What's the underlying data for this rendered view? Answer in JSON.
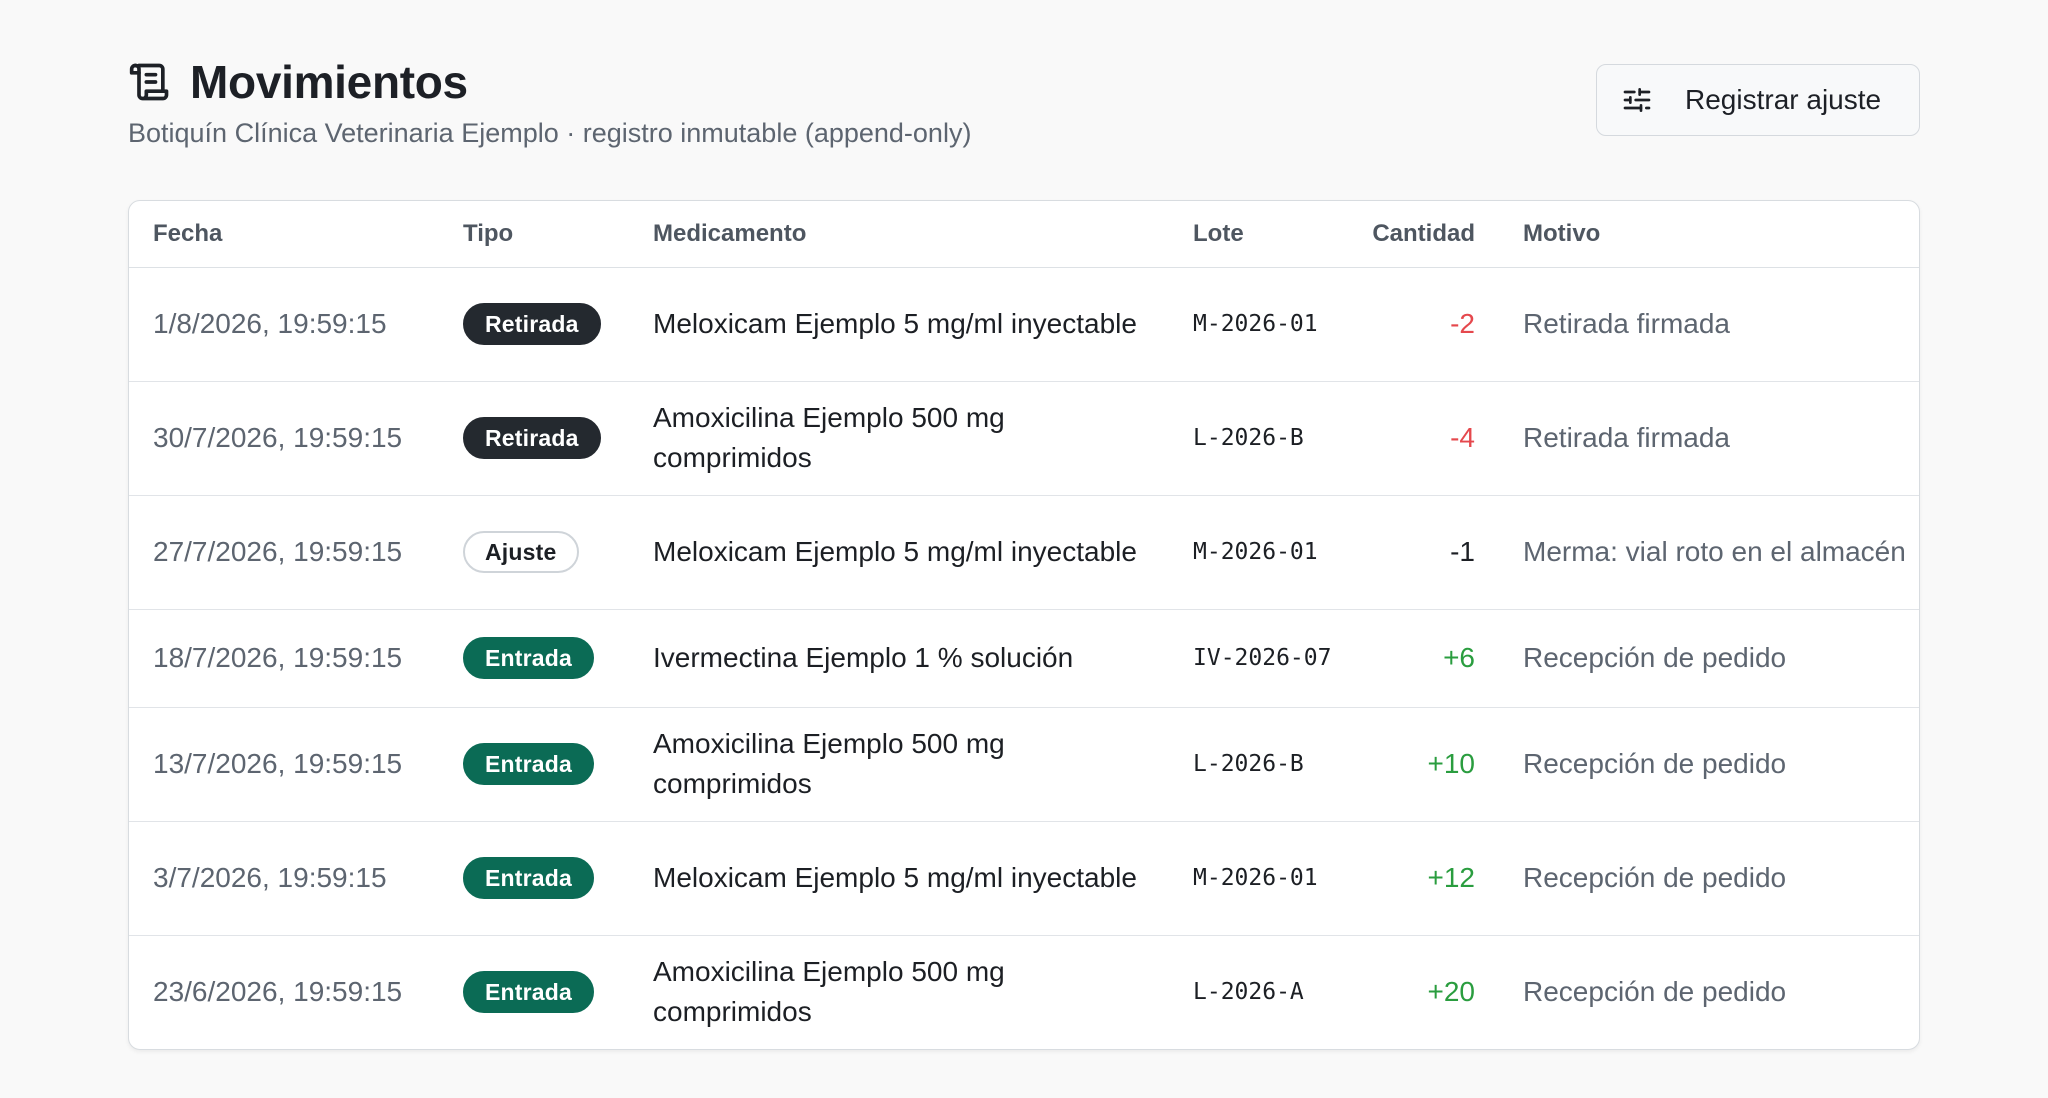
{
  "header": {
    "title": "Movimientos",
    "subtitle": "Botiquín Clínica Veterinaria Ejemplo · registro inmutable (append-only)",
    "title_icon": "scroll-icon",
    "action_button": {
      "label": "Registrar ajuste",
      "icon": "sliders-icon"
    }
  },
  "table": {
    "columns": {
      "fecha": "Fecha",
      "tipo": "Tipo",
      "medicamento": "Medicamento",
      "lote": "Lote",
      "cantidad": "Cantidad",
      "motivo": "Motivo"
    },
    "rows": [
      {
        "fecha": "1/8/2026, 19:59:15",
        "tipo": "Retirada",
        "tipo_key": "retirada",
        "medicamento": "Meloxicam Ejemplo 5 mg/ml inyectable",
        "lote": "M-2026-01",
        "cantidad": "-2",
        "cantidad_color": "#e5484d",
        "motivo": "Retirada firmada"
      },
      {
        "fecha": "30/7/2026, 19:59:15",
        "tipo": "Retirada",
        "tipo_key": "retirada",
        "medicamento": "Amoxicilina Ejemplo 500 mg comprimidos",
        "lote": "L-2026-B",
        "cantidad": "-4",
        "cantidad_color": "#e5484d",
        "motivo": "Retirada firmada"
      },
      {
        "fecha": "27/7/2026, 19:59:15",
        "tipo": "Ajuste",
        "tipo_key": "ajuste",
        "medicamento": "Meloxicam Ejemplo 5 mg/ml inyectable",
        "lote": "M-2026-01",
        "cantidad": "-1",
        "cantidad_color": "#1c1f24",
        "motivo": "Merma: vial roto en el almacén"
      },
      {
        "fecha": "18/7/2026, 19:59:15",
        "tipo": "Entrada",
        "tipo_key": "entrada",
        "medicamento": "Ivermectina Ejemplo 1 % solución",
        "lote": "IV-2026-07",
        "cantidad": "+6",
        "cantidad_color": "#2a9d3f",
        "motivo": "Recepción de pedido"
      },
      {
        "fecha": "13/7/2026, 19:59:15",
        "tipo": "Entrada",
        "tipo_key": "entrada",
        "medicamento": "Amoxicilina Ejemplo 500 mg comprimidos",
        "lote": "L-2026-B",
        "cantidad": "+10",
        "cantidad_color": "#2a9d3f",
        "motivo": "Recepción de pedido"
      },
      {
        "fecha": "3/7/2026, 19:59:15",
        "tipo": "Entrada",
        "tipo_key": "entrada",
        "medicamento": "Meloxicam Ejemplo 5 mg/ml inyectable",
        "lote": "M-2026-01",
        "cantidad": "+12",
        "cantidad_color": "#2a9d3f",
        "motivo": "Recepción de pedido"
      },
      {
        "fecha": "23/6/2026, 19:59:15",
        "tipo": "Entrada",
        "tipo_key": "entrada",
        "medicamento": "Amoxicilina Ejemplo 500 mg comprimidos",
        "lote": "L-2026-A",
        "cantidad": "+20",
        "cantidad_color": "#2a9d3f",
        "motivo": "Recepción de pedido"
      }
    ]
  }
}
